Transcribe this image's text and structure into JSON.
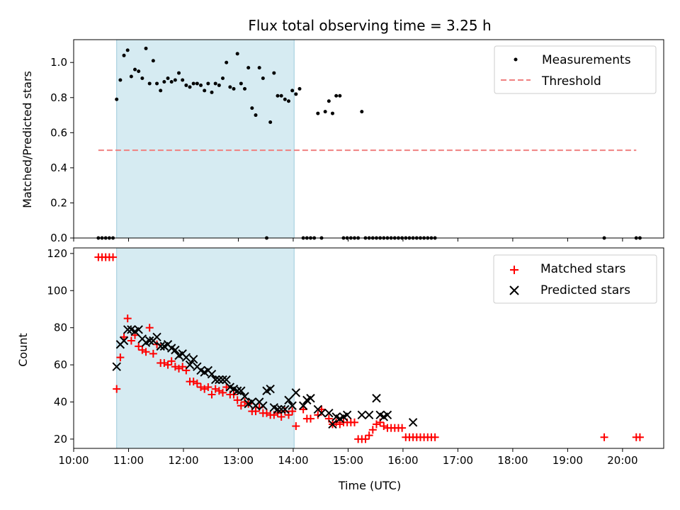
{
  "chart_data": [
    {
      "type": "scatter",
      "panel": "top",
      "title": "Flux total observing time = 3.25 h",
      "ylabel": "Matched/Predicted stars",
      "xlim": [
        "10:00",
        "20:45"
      ],
      "ylim": [
        0,
        1.13
      ],
      "yticks": [
        "0.0",
        "0.2",
        "0.4",
        "0.6",
        "0.8",
        "1.0"
      ],
      "shaded_span": [
        "10:47",
        "14:01"
      ],
      "legend_position": "top-right",
      "series": [
        {
          "name": "Measurements",
          "marker": "dot",
          "color": "#000000",
          "x": [
            "10:27",
            "10:31",
            "10:35",
            "10:39",
            "10:43",
            "10:47",
            "10:51",
            "10:55",
            "10:59",
            "11:03",
            "11:07",
            "11:11",
            "11:15",
            "11:19",
            "11:23",
            "11:27",
            "11:31",
            "11:35",
            "11:39",
            "11:43",
            "11:47",
            "11:51",
            "11:55",
            "11:59",
            "12:03",
            "12:07",
            "12:11",
            "12:15",
            "12:19",
            "12:23",
            "12:27",
            "12:31",
            "12:35",
            "12:39",
            "12:43",
            "12:47",
            "12:51",
            "12:55",
            "12:59",
            "13:03",
            "13:07",
            "13:11",
            "13:15",
            "13:19",
            "13:23",
            "13:27",
            "13:31",
            "13:35",
            "13:39",
            "13:43",
            "13:47",
            "13:51",
            "13:55",
            "13:59",
            "14:03",
            "14:07",
            "14:11",
            "14:15",
            "14:19",
            "14:23",
            "14:27",
            "14:31",
            "14:35",
            "14:39",
            "14:43",
            "14:47",
            "14:51",
            "14:55",
            "14:59",
            "15:03",
            "15:07",
            "15:11",
            "15:15",
            "15:19",
            "15:23",
            "15:27",
            "15:31",
            "15:35",
            "15:39",
            "15:43",
            "15:47",
            "15:51",
            "15:55",
            "15:59",
            "16:03",
            "16:07",
            "16:11",
            "16:15",
            "16:19",
            "16:23",
            "16:27",
            "16:31",
            "16:35",
            "19:40",
            "20:15",
            "20:19"
          ],
          "y": [
            0,
            0,
            0,
            0,
            0,
            0.79,
            0.9,
            1.04,
            1.07,
            0.92,
            0.96,
            0.95,
            0.91,
            1.08,
            0.88,
            1.01,
            0.88,
            0.84,
            0.89,
            0.91,
            0.89,
            0.9,
            0.94,
            0.9,
            0.87,
            0.86,
            0.88,
            0.88,
            0.87,
            0.84,
            0.88,
            0.83,
            0.88,
            0.87,
            0.91,
            1.0,
            0.86,
            0.85,
            1.05,
            0.88,
            0.85,
            0.97,
            0.74,
            0.7,
            0.97,
            0.91,
            0,
            0.66,
            0.94,
            0.81,
            0.81,
            0.79,
            0.78,
            0.84,
            0.82,
            0.85,
            0,
            0,
            0,
            0,
            0.71,
            0,
            0.72,
            0.78,
            0.71,
            0.81,
            0.81,
            0,
            0,
            0,
            0,
            0,
            0.72,
            0,
            0,
            0,
            0,
            0,
            0,
            0,
            0,
            0,
            0,
            0,
            0,
            0,
            0,
            0,
            0,
            0,
            0,
            0,
            0,
            0,
            0,
            0
          ]
        },
        {
          "name": "Threshold",
          "marker": "dashed-line",
          "color": "#f08080",
          "x": [
            "10:27",
            "20:15"
          ],
          "y": [
            0.5,
            0.5
          ]
        }
      ]
    },
    {
      "type": "scatter",
      "panel": "bottom",
      "xlabel": "Time (UTC)",
      "ylabel": "Count",
      "xlim": [
        "10:00",
        "20:45"
      ],
      "ylim": [
        15,
        123
      ],
      "yticks": [
        "20",
        "40",
        "60",
        "80",
        "100",
        "120"
      ],
      "xticks": [
        "10:00",
        "11:00",
        "12:00",
        "13:00",
        "14:00",
        "15:00",
        "16:00",
        "17:00",
        "18:00",
        "19:00",
        "20:00"
      ],
      "shaded_span": [
        "10:47",
        "14:01"
      ],
      "legend_position": "top-right",
      "series": [
        {
          "name": "Matched stars",
          "marker": "plus",
          "color": "#ff0000",
          "x": [
            "10:27",
            "10:31",
            "10:35",
            "10:39",
            "10:43",
            "10:47",
            "10:51",
            "10:55",
            "10:59",
            "11:03",
            "11:07",
            "11:11",
            "11:15",
            "11:19",
            "11:23",
            "11:27",
            "11:31",
            "11:35",
            "11:39",
            "11:43",
            "11:47",
            "11:51",
            "11:55",
            "11:59",
            "12:03",
            "12:07",
            "12:11",
            "12:15",
            "12:19",
            "12:23",
            "12:27",
            "12:31",
            "12:35",
            "12:39",
            "12:43",
            "12:47",
            "12:51",
            "12:55",
            "12:59",
            "13:03",
            "13:07",
            "13:11",
            "13:15",
            "13:19",
            "13:23",
            "13:27",
            "13:31",
            "13:35",
            "13:39",
            "13:43",
            "13:47",
            "13:51",
            "13:55",
            "13:59",
            "14:03",
            "14:11",
            "14:15",
            "14:19",
            "14:27",
            "14:31",
            "14:39",
            "14:43",
            "14:47",
            "14:51",
            "14:55",
            "14:59",
            "15:03",
            "15:07",
            "15:11",
            "15:15",
            "15:19",
            "15:23",
            "15:27",
            "15:31",
            "15:35",
            "15:39",
            "15:43",
            "15:47",
            "15:51",
            "15:55",
            "15:59",
            "16:03",
            "16:07",
            "16:11",
            "16:15",
            "16:19",
            "16:23",
            "16:27",
            "16:31",
            "16:35",
            "19:40",
            "20:15",
            "20:19"
          ],
          "y": [
            118,
            118,
            118,
            118,
            118,
            47,
            64,
            75,
            85,
            73,
            76,
            70,
            68,
            67,
            80,
            66,
            71,
            61,
            61,
            60,
            62,
            59,
            58,
            59,
            57,
            51,
            51,
            50,
            48,
            47,
            48,
            44,
            47,
            46,
            45,
            48,
            44,
            44,
            41,
            38,
            40,
            39,
            35,
            35,
            37,
            34,
            34,
            33,
            33,
            34,
            32,
            35,
            33,
            35,
            27,
            36,
            31,
            31,
            33,
            36,
            31,
            28,
            29,
            28,
            29,
            29,
            29,
            29,
            20,
            20,
            20,
            22,
            25,
            28,
            29,
            27,
            26,
            26,
            26,
            26,
            26,
            21,
            21,
            21,
            21,
            21,
            21,
            21,
            21,
            21,
            21,
            21,
            21
          ]
        },
        {
          "name": "Predicted stars",
          "marker": "x",
          "color": "#000000",
          "x": [
            "10:47",
            "10:51",
            "10:55",
            "10:59",
            "11:03",
            "11:07",
            "11:11",
            "11:15",
            "11:19",
            "11:23",
            "11:27",
            "11:31",
            "11:35",
            "11:39",
            "11:43",
            "11:47",
            "11:51",
            "11:55",
            "11:59",
            "12:03",
            "12:07",
            "12:11",
            "12:15",
            "12:19",
            "12:23",
            "12:27",
            "12:31",
            "12:35",
            "12:39",
            "12:43",
            "12:47",
            "12:51",
            "12:55",
            "12:59",
            "13:03",
            "13:07",
            "13:11",
            "13:15",
            "13:19",
            "13:23",
            "13:27",
            "13:31",
            "13:35",
            "13:39",
            "13:43",
            "13:47",
            "13:51",
            "13:55",
            "13:59",
            "14:03",
            "14:11",
            "14:15",
            "14:19",
            "14:27",
            "14:31",
            "14:39",
            "14:43",
            "14:47",
            "14:51",
            "14:55",
            "14:59",
            "15:15",
            "15:23",
            "15:31",
            "15:35",
            "15:39",
            "15:43",
            "16:11"
          ],
          "y": [
            59,
            71,
            73,
            79,
            79,
            78,
            79,
            74,
            72,
            73,
            73,
            75,
            70,
            70,
            71,
            69,
            68,
            65,
            66,
            64,
            60,
            63,
            59,
            57,
            56,
            57,
            55,
            52,
            52,
            52,
            52,
            48,
            47,
            46,
            46,
            43,
            39,
            40,
            38,
            40,
            38,
            46,
            47,
            37,
            36,
            36,
            36,
            41,
            38,
            45,
            38,
            41,
            42,
            36,
            34,
            34,
            28,
            32,
            31,
            32,
            33,
            33,
            33,
            42,
            33,
            32,
            33,
            29
          ]
        }
      ]
    }
  ]
}
